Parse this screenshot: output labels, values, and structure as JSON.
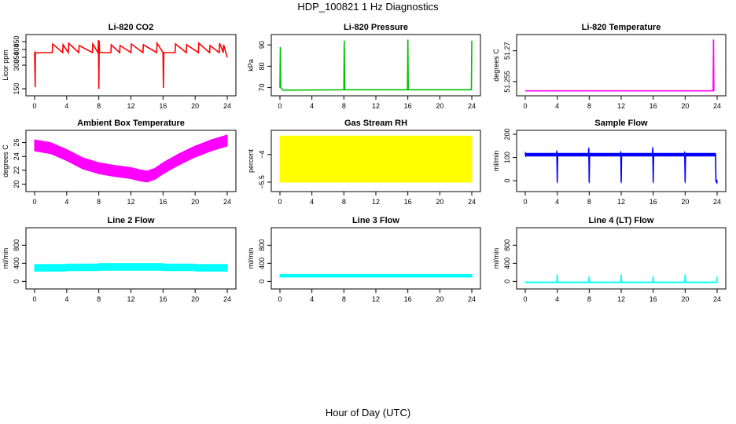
{
  "figure": {
    "title": "HDP_100821 1 Hz Diagnostics",
    "xlabel": "Hour of Day (UTC)"
  },
  "chart_data": [
    {
      "type": "line",
      "title": "Li-820 CO2",
      "ylabel": "Licor ppm",
      "color": "#ff0000",
      "xlim": [
        0,
        24
      ],
      "xticks": [
        0,
        4,
        8,
        12,
        16,
        20,
        24
      ],
      "ylim": [
        130,
        470
      ],
      "yticks": [
        150,
        300,
        350,
        400,
        450
      ],
      "series": [
        {
          "x": [
            0,
            0.08,
            0.1,
            0.15,
            1,
            2.2,
            2.25,
            3.5,
            3.55,
            4.2,
            4.25,
            5.5,
            5.55,
            7.2,
            7.25,
            7.9,
            7.95,
            8.0,
            8.05,
            8.1,
            9.5,
            9.55,
            10.6,
            10.65,
            12,
            12.05,
            13.5,
            13.55,
            15.2,
            15.25,
            16.0,
            16.05,
            16.1,
            17.5,
            17.55,
            18.9,
            18.95,
            20.4,
            20.45,
            21.8,
            21.85,
            23.0,
            23.05,
            23.5,
            23.55,
            24
          ],
          "y": [
            380,
            160,
            382,
            378,
            380,
            380,
            435,
            380,
            430,
            380,
            440,
            380,
            425,
            380,
            435,
            380,
            460,
            150,
            455,
            380,
            380,
            430,
            380,
            425,
            380,
            435,
            380,
            430,
            380,
            440,
            380,
            155,
            380,
            380,
            435,
            380,
            430,
            380,
            440,
            380,
            425,
            380,
            440,
            380,
            430,
            350
          ]
        }
      ]
    },
    {
      "type": "line",
      "title": "Li-820 Pressure",
      "ylabel": "kPa",
      "color": "#00c000",
      "xlim": [
        0,
        24
      ],
      "xticks": [
        0,
        4,
        8,
        12,
        16,
        20,
        24
      ],
      "ylim": [
        68,
        93
      ],
      "yticks": [
        70,
        80,
        90
      ],
      "series": [
        {
          "x": [
            0,
            0.05,
            0.1,
            0.4,
            8.0,
            8.05,
            8.1,
            15.95,
            16.0,
            16.05,
            23.95,
            24.0
          ],
          "y": [
            70,
            89,
            70,
            68.8,
            69,
            92,
            69,
            69,
            92.5,
            69,
            69,
            92
          ]
        }
      ]
    },
    {
      "type": "line",
      "title": "Li-820 Temperature",
      "ylabel": "degrees C",
      "color": "#ff00ff",
      "xlim": [
        0,
        24
      ],
      "xticks": [
        0,
        4,
        8,
        12,
        16,
        20,
        24
      ],
      "ylim": [
        51.25,
        51.276
      ],
      "yticks": [
        51.255,
        51.27
      ],
      "series": [
        {
          "x": [
            0,
            23.5,
            23.55,
            23.6
          ],
          "y": [
            51.2505,
            51.2505,
            51.2755,
            51.2505
          ]
        }
      ]
    },
    {
      "type": "line",
      "title": "Ambient Box Temperature",
      "ylabel": "degrees C",
      "color": "#ff00ff",
      "xlim": [
        0,
        24
      ],
      "xticks": [
        0,
        4,
        8,
        12,
        16,
        20,
        24
      ],
      "ylim": [
        19.5,
        27.2
      ],
      "yticks": [
        20,
        22,
        24,
        26
      ],
      "series": [
        {
          "x": [
            0,
            2,
            4,
            6,
            8,
            10,
            12,
            13,
            14,
            15,
            16,
            18,
            20,
            22,
            24
          ],
          "y": [
            25.6,
            25.2,
            24.2,
            23.0,
            22.3,
            21.9,
            21.6,
            21.3,
            21.1,
            21.5,
            22.3,
            23.6,
            24.7,
            25.6,
            26.3
          ]
        }
      ],
      "band_halfwidth": 0.8
    },
    {
      "type": "line",
      "title": "Gas Stream RH",
      "ylabel": "percent",
      "color": "#ffff00",
      "xlim": [
        0,
        24
      ],
      "xticks": [
        0,
        4,
        8,
        12,
        16,
        20,
        24
      ],
      "ylim": [
        -5.8,
        -2.9
      ],
      "yticks": [
        -5.5,
        -4.0
      ],
      "series": [
        {
          "x": [
            0,
            24
          ],
          "y": [
            -4.25,
            -4.25
          ]
        }
      ],
      "band_halfwidth": 1.25
    },
    {
      "type": "line",
      "title": "Sample Flow",
      "ylabel": "ml/min",
      "color": "#0000ff",
      "xlim": [
        0,
        24
      ],
      "xticks": [
        0,
        4,
        8,
        12,
        16,
        20,
        24
      ],
      "ylim": [
        -30,
        200
      ],
      "yticks": [
        0,
        100,
        200
      ],
      "series": [
        {
          "x": [
            0,
            0.05,
            0.1,
            3.9,
            3.95,
            4.0,
            4.05,
            7.9,
            7.95,
            8.0,
            8.05,
            11.9,
            11.95,
            12.0,
            12.05,
            15.9,
            15.95,
            16.0,
            16.05,
            19.9,
            19.95,
            20.0,
            20.05,
            23.8,
            23.85,
            24.0
          ],
          "y": [
            118,
            110,
            112,
            112,
            125,
            -5,
            112,
            112,
            138,
            -5,
            112,
            112,
            122,
            -5,
            112,
            112,
            140,
            -5,
            112,
            112,
            120,
            -5,
            112,
            112,
            0,
            -5
          ]
        }
      ],
      "band_halfwidth": 6
    },
    {
      "type": "line",
      "title": "Line 2 Flow",
      "ylabel": "ml/min",
      "color": "#00ffff",
      "xlim": [
        0,
        24
      ],
      "xticks": [
        0,
        4,
        8,
        12,
        16,
        20,
        24
      ],
      "ylim": [
        -80,
        1100
      ],
      "yticks": [
        0,
        400,
        800
      ],
      "series": [
        {
          "x": [
            0,
            3.9,
            4.1,
            7.9,
            8.1,
            11.9,
            12.1,
            15.9,
            16.1,
            19.9,
            20.1,
            24
          ],
          "y": [
            300,
            300,
            310,
            310,
            320,
            320,
            320,
            320,
            310,
            310,
            300,
            300
          ]
        }
      ],
      "band_halfwidth": 75
    },
    {
      "type": "line",
      "title": "Line 3 Flow",
      "ylabel": "ml/min",
      "color": "#00ffff",
      "xlim": [
        0,
        24
      ],
      "xticks": [
        0,
        4,
        8,
        12,
        16,
        20,
        24
      ],
      "ylim": [
        -80,
        1100
      ],
      "yticks": [
        0,
        400,
        800
      ],
      "series": [
        {
          "x": [
            0,
            24
          ],
          "y": [
            125,
            125
          ]
        }
      ],
      "band_halfwidth": 30
    },
    {
      "type": "line",
      "title": "Line 4 (LT) Flow",
      "ylabel": "ml/min",
      "color": "#00ffff",
      "xlim": [
        0,
        24
      ],
      "xticks": [
        0,
        4,
        8,
        12,
        16,
        20,
        24
      ],
      "ylim": [
        -80,
        1100
      ],
      "yticks": [
        0,
        400,
        800
      ],
      "series": [
        {
          "x": [
            0,
            3.95,
            4.0,
            4.05,
            7.95,
            8.0,
            8.05,
            11.95,
            12.0,
            12.05,
            15.95,
            16.0,
            16.05,
            19.95,
            20.0,
            20.05,
            23.95,
            24.0
          ],
          "y": [
            -20,
            -20,
            150,
            -20,
            -20,
            110,
            -20,
            -20,
            155,
            -20,
            -20,
            110,
            -20,
            -20,
            155,
            -20,
            -20,
            100
          ]
        }
      ],
      "band_halfwidth": 8
    }
  ]
}
